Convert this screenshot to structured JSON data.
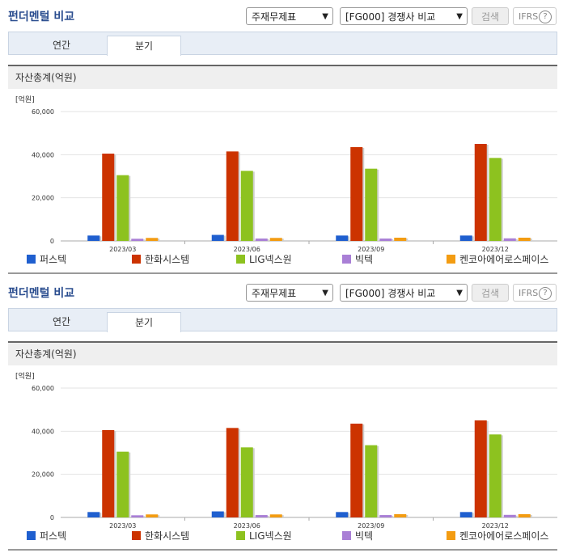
{
  "panels": [
    {
      "title": "펀더멘털 비교",
      "select_statement": "주재무제표",
      "select_compare": "[FG000] 경쟁사 비교",
      "search_label": "검색",
      "ifrs_label": "IFRS",
      "help_glyph": "?",
      "tabs": [
        {
          "label": "연간",
          "active": false
        },
        {
          "label": "분기",
          "active": true
        }
      ],
      "metric_title": "자산총계(억원)"
    },
    {
      "title": "펀더멘털 비교",
      "select_statement": "주재무제표",
      "select_compare": "[FG000] 경쟁사 비교",
      "search_label": "검색",
      "ifrs_label": "IFRS",
      "help_glyph": "?",
      "tabs": [
        {
          "label": "연간",
          "active": false
        },
        {
          "label": "분기",
          "active": true
        }
      ],
      "metric_title": "자산총계(억원)"
    }
  ],
  "chart_data": [
    {
      "type": "bar",
      "unit_label": "[억원]",
      "categories": [
        "2023/03",
        "2023/06",
        "2023/09",
        "2023/12"
      ],
      "ylim": [
        0,
        60000
      ],
      "yticks": [
        "0",
        "20,000",
        "40,000",
        "60,000"
      ],
      "grid": true,
      "legend_position": "bottom",
      "series": [
        {
          "name": "퍼스텍",
          "color": "#1f5fcf",
          "values": [
            2500,
            2800,
            2500,
            2500
          ]
        },
        {
          "name": "한화시스템",
          "color": "#cc3300",
          "values": [
            40500,
            41500,
            43500,
            45000
          ]
        },
        {
          "name": "LIG넥스원",
          "color": "#8dc21f",
          "values": [
            30500,
            32500,
            33500,
            38500
          ]
        },
        {
          "name": "빅텍",
          "color": "#a97fd6",
          "values": [
            1000,
            1100,
            1100,
            1200
          ]
        },
        {
          "name": "켄코아에어로스페이스",
          "color": "#f39c12",
          "values": [
            1400,
            1400,
            1500,
            1500
          ]
        }
      ]
    },
    {
      "type": "bar",
      "unit_label": "[억원]",
      "categories": [
        "2023/03",
        "2023/06",
        "2023/09",
        "2023/12"
      ],
      "ylim": [
        0,
        60000
      ],
      "yticks": [
        "0",
        "20,000",
        "40,000",
        "60,000"
      ],
      "grid": true,
      "legend_position": "bottom",
      "series": [
        {
          "name": "퍼스텍",
          "color": "#1f5fcf",
          "values": [
            2500,
            2800,
            2500,
            2500
          ]
        },
        {
          "name": "한화시스템",
          "color": "#cc3300",
          "values": [
            40500,
            41500,
            43500,
            45000
          ]
        },
        {
          "name": "LIG넥스원",
          "color": "#8dc21f",
          "values": [
            30500,
            32500,
            33500,
            38500
          ]
        },
        {
          "name": "빅텍",
          "color": "#a97fd6",
          "values": [
            1000,
            1100,
            1100,
            1200
          ]
        },
        {
          "name": "켄코아에어로스페이스",
          "color": "#f39c12",
          "values": [
            1400,
            1400,
            1500,
            1500
          ]
        }
      ]
    }
  ]
}
